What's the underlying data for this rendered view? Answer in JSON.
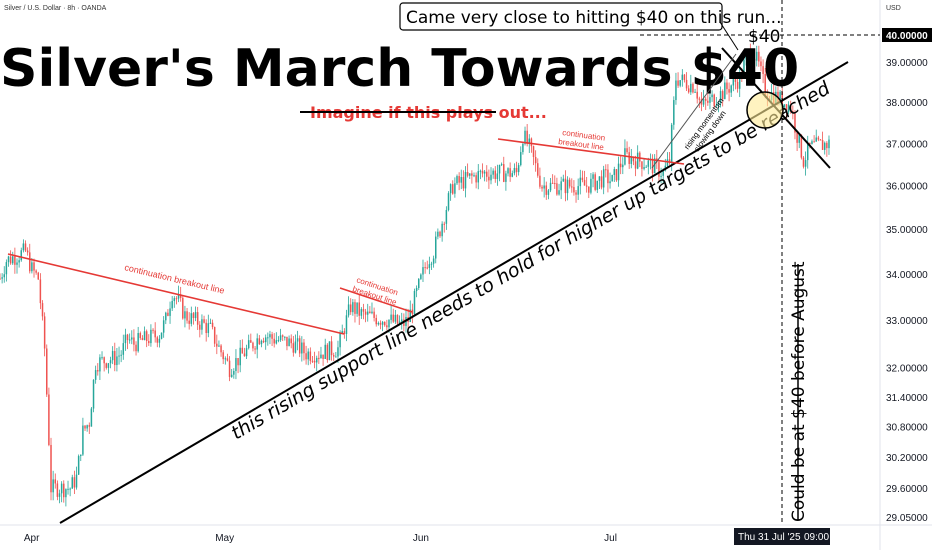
{
  "symbol_header": "Silver / U.S. Dollar · 8h · OANDA",
  "currency": "USD",
  "title": "Silver's March Towards $40",
  "annotations": {
    "subtitle": "Imagine if this plays out...",
    "callout": "Came very close to hitting $40 on this run...",
    "level_label": "$40",
    "breakout_1": "continuation breakout line",
    "breakout_2_l1": "continuation",
    "breakout_2_l2": "breakout line",
    "breakout_3_l1": "continuation",
    "breakout_3_l2": "breakout line",
    "momentum_l1": "rising momentum",
    "momentum_l2": "slowing down",
    "support_note": "this rising support line needs to hold for higher up targets to be reached",
    "vertical_note": "Could be at $40 before August"
  },
  "x_axis": {
    "months": [
      "Apr",
      "May",
      "Jun",
      "Jul"
    ],
    "cursor_label": "Thu 31 Jul '25",
    "cursor_time": "09:00"
  },
  "colors": {
    "up": "#26a69a",
    "down": "#ef5350",
    "red_line": "#e53935",
    "current_price_bg": "#000000"
  },
  "chart_data": {
    "type": "candlestick",
    "instrument": "Silver / U.S. Dollar",
    "timeframe": "8h",
    "source": "OANDA",
    "y_scale": "log",
    "ylim": [
      28.9,
      40.6
    ],
    "y_ticks": [
      "40.00000",
      "39.00000",
      "38.00000",
      "37.00000",
      "36.00000",
      "35.00000",
      "34.00000",
      "33.00000",
      "32.00000",
      "31.40000",
      "30.80000",
      "30.20000",
      "29.60000",
      "29.05000"
    ],
    "highlight_level": "40.00000",
    "x_range": [
      "2025-03-27",
      "2025-08-12"
    ],
    "close_path": [
      [
        "2025-03-27",
        33.9
      ],
      [
        "2025-03-28",
        34.3
      ],
      [
        "2025-03-31",
        34.5
      ],
      [
        "2025-04-01",
        34.1
      ],
      [
        "2025-04-02",
        33.9
      ],
      [
        "2025-04-03",
        32.4
      ],
      [
        "2025-04-04",
        29.6
      ],
      [
        "2025-04-07",
        29.6
      ],
      [
        "2025-04-08",
        29.8
      ],
      [
        "2025-04-09",
        30.7
      ],
      [
        "2025-04-10",
        30.9
      ],
      [
        "2025-04-11",
        32.1
      ],
      [
        "2025-04-14",
        32.2
      ],
      [
        "2025-04-15",
        32.3
      ],
      [
        "2025-04-16",
        32.6
      ],
      [
        "2025-04-17",
        32.5
      ],
      [
        "2025-04-21",
        32.7
      ],
      [
        "2025-04-22",
        33.0
      ],
      [
        "2025-04-23",
        33.6
      ],
      [
        "2025-04-24",
        33.4
      ],
      [
        "2025-04-25",
        33.1
      ],
      [
        "2025-04-28",
        32.9
      ],
      [
        "2025-04-29",
        32.8
      ],
      [
        "2025-04-30",
        32.5
      ],
      [
        "2025-05-02",
        32.0
      ],
      [
        "2025-05-05",
        32.4
      ],
      [
        "2025-05-07",
        32.7
      ],
      [
        "2025-05-09",
        32.6
      ],
      [
        "2025-05-12",
        32.5
      ],
      [
        "2025-05-14",
        32.3
      ],
      [
        "2025-05-16",
        32.3
      ],
      [
        "2025-05-19",
        32.4
      ],
      [
        "2025-05-21",
        33.3
      ],
      [
        "2025-05-23",
        33.1
      ],
      [
        "2025-05-27",
        33.0
      ],
      [
        "2025-05-29",
        32.9
      ],
      [
        "2025-05-30",
        33.0
      ],
      [
        "2025-06-02",
        34.3
      ],
      [
        "2025-06-03",
        34.5
      ],
      [
        "2025-06-05",
        35.5
      ],
      [
        "2025-06-06",
        36.0
      ],
      [
        "2025-06-09",
        36.2
      ],
      [
        "2025-06-11",
        36.3
      ],
      [
        "2025-06-13",
        36.3
      ],
      [
        "2025-06-16",
        36.3
      ],
      [
        "2025-06-17",
        37.2
      ],
      [
        "2025-06-18",
        36.9
      ],
      [
        "2025-06-20",
        36.0
      ],
      [
        "2025-06-23",
        36.0
      ],
      [
        "2025-06-25",
        36.0
      ],
      [
        "2025-06-27",
        36.0
      ],
      [
        "2025-06-30",
        36.2
      ],
      [
        "2025-07-01",
        36.1
      ],
      [
        "2025-07-03",
        36.7
      ],
      [
        "2025-07-07",
        36.5
      ],
      [
        "2025-07-09",
        36.3
      ],
      [
        "2025-07-10",
        36.6
      ],
      [
        "2025-07-11",
        38.6
      ],
      [
        "2025-07-14",
        38.4
      ],
      [
        "2025-07-15",
        37.9
      ],
      [
        "2025-07-17",
        38.1
      ],
      [
        "2025-07-18",
        38.2
      ],
      [
        "2025-07-21",
        38.6
      ],
      [
        "2025-07-22",
        39.1
      ],
      [
        "2025-07-23",
        39.3
      ],
      [
        "2025-07-24",
        38.9
      ],
      [
        "2025-07-25",
        38.3
      ],
      [
        "2025-07-28",
        38.0
      ],
      [
        "2025-07-29",
        37.9
      ],
      [
        "2025-07-30",
        37.2
      ],
      [
        "2025-07-31",
        36.6
      ],
      [
        "2025-08-01",
        36.9
      ],
      [
        "2025-08-04",
        37.0
      ]
    ]
  }
}
